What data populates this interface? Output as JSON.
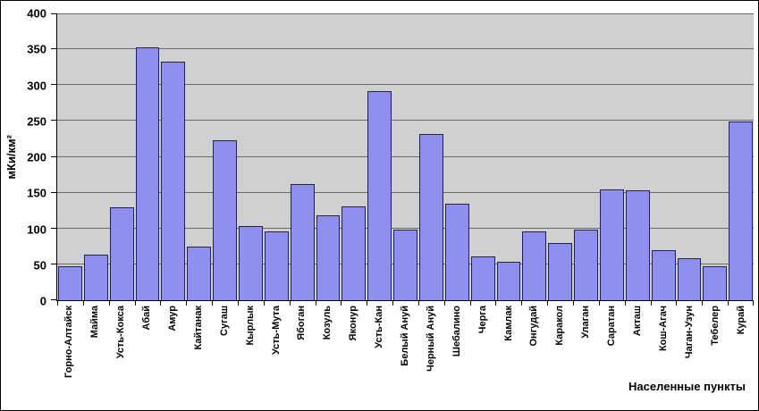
{
  "chart_data": {
    "type": "bar",
    "title": "",
    "xlabel": "Населенные пункты",
    "ylabel": "мКи/км²",
    "ylim": [
      0,
      400
    ],
    "ytick_interval": 50,
    "yticks": [
      0,
      50,
      100,
      150,
      200,
      250,
      300,
      350,
      400
    ],
    "grid": true,
    "legend": "none",
    "categories": [
      "Горно-Алтайск",
      "Майма",
      "Усть-Кокса",
      "Абай",
      "Амур",
      "Кайтанак",
      "Сугаш",
      "Кырлык",
      "Усть-Мута",
      "Ябоган",
      "Козуль",
      "Яконур",
      "Усть-Кан",
      "Белый Ануй",
      "Черный Ануй",
      "Шебалино",
      "Черга",
      "Камлак",
      "Онгудай",
      "Каракол",
      "Улаган",
      "Саратан",
      "Акташ",
      "Кош-Агач",
      "Чаган-Узун",
      "Тебелер",
      "Курай"
    ],
    "values": [
      47,
      63,
      130,
      353,
      333,
      75,
      223,
      103,
      96,
      162,
      119,
      131,
      291,
      99,
      232,
      135,
      61,
      53,
      96,
      80,
      98,
      154,
      153,
      70,
      59,
      47,
      249
    ],
    "colors": {
      "bar_fill": "#8f8ff0",
      "bar_border": "#1f1f66",
      "plot_bg": "#d0d0d0",
      "grid_color": "#6a6a6a",
      "axis_color": "#000000",
      "text_color": "#000000"
    }
  }
}
